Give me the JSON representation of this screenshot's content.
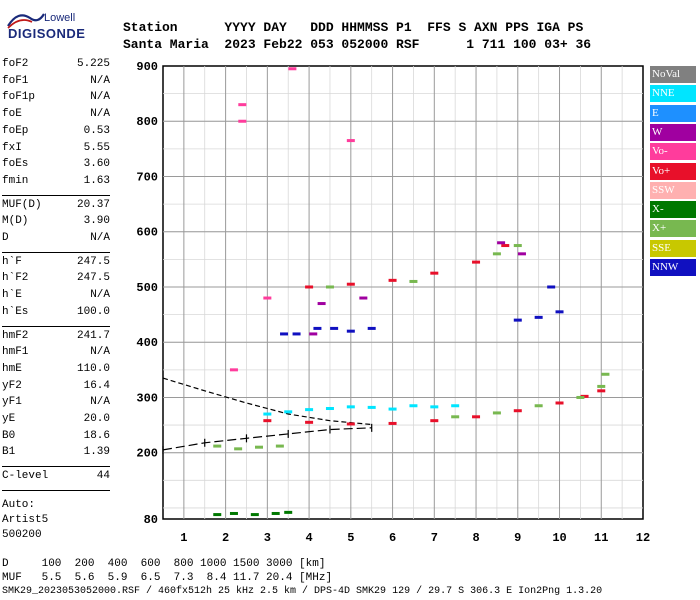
{
  "logo": {
    "brand_top": "Lowell",
    "brand_main": "DIGISONDE"
  },
  "header": {
    "line1": "Station      YYYY DAY   DDD HHMMSS P1  FFS S AXN PPS IGA PS",
    "line2": "Santa Maria  2023 Feb22 053 052000 RSF      1 711 100 03+ 36"
  },
  "params": [
    {
      "key": "foF2",
      "value": "5.225"
    },
    {
      "key": "foF1",
      "value": "N/A"
    },
    {
      "key": "foF1p",
      "value": "N/A"
    },
    {
      "key": "foE",
      "value": "N/A"
    },
    {
      "key": "foEp",
      "value": "0.53"
    },
    {
      "key": "fxI",
      "value": "5.55"
    },
    {
      "key": "foEs",
      "value": "3.60"
    },
    {
      "key": "fmin",
      "value": "1.63"
    },
    {
      "key": "MUF(D)",
      "value": "20.37"
    },
    {
      "key": "M(D)",
      "value": "3.90"
    },
    {
      "key": "D",
      "value": "N/A"
    },
    {
      "key": "h`F",
      "value": "247.5"
    },
    {
      "key": "h`F2",
      "value": "247.5"
    },
    {
      "key": "h`E",
      "value": "N/A"
    },
    {
      "key": "h`Es",
      "value": "100.0"
    },
    {
      "key": "hmF2",
      "value": "241.7"
    },
    {
      "key": "hmF1",
      "value": "N/A"
    },
    {
      "key": "hmE",
      "value": "110.0"
    },
    {
      "key": "yF2",
      "value": "16.4"
    },
    {
      "key": "yF1",
      "value": "N/A"
    },
    {
      "key": "yE",
      "value": "20.0"
    },
    {
      "key": "B0",
      "value": "18.6"
    },
    {
      "key": "B1",
      "value": "1.39"
    },
    {
      "key": "C-level",
      "value": "44"
    }
  ],
  "autoscaling": [
    "Auto:",
    "Artist5",
    "500200"
  ],
  "legend": [
    {
      "label": "NoVal",
      "color": "#808080"
    },
    {
      "label": "NNE",
      "color": "#00e5ff"
    },
    {
      "label": "E",
      "color": "#1e90ff"
    },
    {
      "label": "W",
      "color": "#a000a0"
    },
    {
      "label": "Vo-",
      "color": "#ff3c9c"
    },
    {
      "label": "Vo+",
      "color": "#e8102a"
    },
    {
      "label": "SSW",
      "color": "#ffb0b0"
    },
    {
      "label": "X-",
      "color": "#007800"
    },
    {
      "label": "X+",
      "color": "#78b850"
    },
    {
      "label": "SSE",
      "color": "#c8c800"
    },
    {
      "label": "NNW",
      "color": "#1010c0"
    }
  ],
  "distance_table": {
    "line1": "D     100  200  400  600  800 1000 1500 3000 [km]",
    "line2": "MUF   5.5  5.6  5.9  6.5  7.3  8.4 11.7 20.4 [MHz]"
  },
  "footer": "SMK29_2023053052000.RSF / 460fx512h 25 kHz 2.5 km / DPS-4D SMK29 129 / 29.7 S 306.3 E Ion2Png 1.3.20",
  "chart_data": {
    "type": "scatter",
    "title": "",
    "xlabel": "",
    "ylabel": "",
    "xlim": [
      0.5,
      12
    ],
    "ylim": [
      80,
      900
    ],
    "x_ticks": [
      1,
      2,
      3,
      4,
      5,
      6,
      7,
      8,
      9,
      10,
      11,
      12
    ],
    "y_ticks": [
      80,
      200,
      300,
      400,
      500,
      600,
      700,
      800,
      900
    ],
    "grid": true,
    "legend_position": "right",
    "series": [
      {
        "name": "Vo+",
        "color": "#e8102a",
        "points": [
          [
            3.0,
            258
          ],
          [
            4.0,
            255
          ],
          [
            5.0,
            252
          ],
          [
            6.0,
            253
          ],
          [
            7.0,
            258
          ],
          [
            8.0,
            265
          ],
          [
            9.0,
            276
          ],
          [
            10.0,
            290
          ],
          [
            10.6,
            302
          ],
          [
            11.0,
            312
          ],
          [
            4.0,
            500
          ],
          [
            5.0,
            505
          ],
          [
            6.0,
            512
          ],
          [
            7.0,
            525
          ],
          [
            8.0,
            545
          ],
          [
            8.7,
            575
          ]
        ]
      },
      {
        "name": "X+",
        "color": "#78b850",
        "points": [
          [
            7.5,
            265
          ],
          [
            8.5,
            272
          ],
          [
            9.5,
            285
          ],
          [
            10.5,
            300
          ],
          [
            11.0,
            320
          ],
          [
            11.1,
            342
          ],
          [
            4.5,
            500
          ],
          [
            6.5,
            510
          ],
          [
            8.5,
            560
          ],
          [
            9.0,
            575
          ],
          [
            1.8,
            212
          ],
          [
            2.3,
            207
          ],
          [
            2.8,
            210
          ],
          [
            3.3,
            212
          ]
        ]
      },
      {
        "name": "NNE",
        "color": "#00e5ff",
        "points": [
          [
            3.0,
            270
          ],
          [
            3.5,
            274
          ],
          [
            4.0,
            278
          ],
          [
            4.5,
            280
          ],
          [
            5.0,
            283
          ],
          [
            5.5,
            282
          ],
          [
            6.0,
            279
          ],
          [
            6.5,
            285
          ],
          [
            7.0,
            283
          ],
          [
            7.5,
            285
          ]
        ]
      },
      {
        "name": "NNW",
        "color": "#1010c0",
        "points": [
          [
            3.4,
            415
          ],
          [
            3.7,
            415
          ],
          [
            4.2,
            425
          ],
          [
            4.6,
            425
          ],
          [
            5.0,
            420
          ],
          [
            5.5,
            425
          ],
          [
            9.0,
            440
          ],
          [
            9.5,
            445
          ],
          [
            10.0,
            455
          ],
          [
            9.8,
            500
          ]
        ]
      },
      {
        "name": "Vo-",
        "color": "#ff3c9c",
        "points": [
          [
            2.4,
            830
          ],
          [
            2.4,
            800
          ],
          [
            5.0,
            765
          ],
          [
            3.6,
            895
          ],
          [
            3.0,
            480
          ],
          [
            2.2,
            350
          ]
        ]
      },
      {
        "name": "X-",
        "color": "#007800",
        "points": [
          [
            1.8,
            88
          ],
          [
            2.2,
            90
          ],
          [
            2.7,
            88
          ],
          [
            3.2,
            90
          ],
          [
            3.5,
            92
          ]
        ]
      },
      {
        "name": "W",
        "color": "#a000a0",
        "points": [
          [
            4.1,
            415
          ],
          [
            4.3,
            470
          ],
          [
            5.3,
            480
          ],
          [
            8.6,
            580
          ],
          [
            9.1,
            560
          ]
        ]
      }
    ],
    "traces": [
      {
        "name": "O-trace",
        "style": "dashed",
        "points": [
          [
            0.5,
            335
          ],
          [
            1.5,
            312
          ],
          [
            2.5,
            290
          ],
          [
            3.5,
            270
          ],
          [
            4.5,
            258
          ],
          [
            5.5,
            251
          ]
        ]
      },
      {
        "name": "X-trace",
        "style": "dash-tick",
        "points": [
          [
            0.5,
            205
          ],
          [
            1.5,
            218
          ],
          [
            2.5,
            226
          ],
          [
            3.5,
            234
          ],
          [
            4.5,
            242
          ],
          [
            5.5,
            245
          ]
        ]
      }
    ]
  }
}
